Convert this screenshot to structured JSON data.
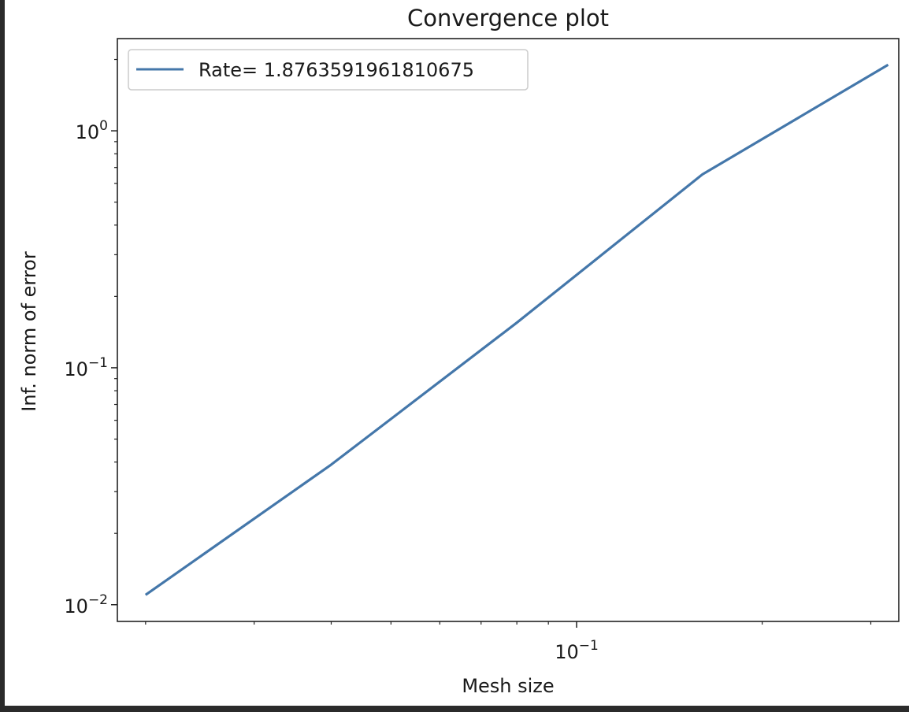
{
  "chart_data": {
    "type": "line",
    "title": "Convergence plot",
    "xlabel": "Mesh size",
    "ylabel": "Inf. norm of error",
    "xscale": "log",
    "yscale": "log",
    "xlim": [
      0.018,
      0.333
    ],
    "ylim": [
      0.0085,
      2.45
    ],
    "grid": false,
    "legend_position": "top-left",
    "series": [
      {
        "name": "Rate= 1.8763591961810675",
        "color": "#4477aa",
        "x": [
          0.02,
          0.04,
          0.08,
          0.16,
          0.32
        ],
        "y": [
          0.011,
          0.039,
          0.155,
          0.655,
          1.9
        ]
      }
    ],
    "x_major_ticks": [
      {
        "value": 0.1,
        "base": "10",
        "exp": "−1"
      }
    ],
    "x_minor_ticks": [
      0.02,
      0.03,
      0.04,
      0.05,
      0.06,
      0.07,
      0.08,
      0.09,
      0.2,
      0.3
    ],
    "y_major_ticks": [
      {
        "value": 0.01,
        "base": "10",
        "exp": "−2"
      },
      {
        "value": 0.1,
        "base": "10",
        "exp": "−1"
      },
      {
        "value": 1,
        "base": "10",
        "exp": "0"
      }
    ],
    "y_minor_ticks": [
      0.02,
      0.03,
      0.04,
      0.05,
      0.06,
      0.07,
      0.08,
      0.09,
      0.2,
      0.3,
      0.4,
      0.5,
      0.6,
      0.7,
      0.8,
      0.9,
      2
    ]
  }
}
